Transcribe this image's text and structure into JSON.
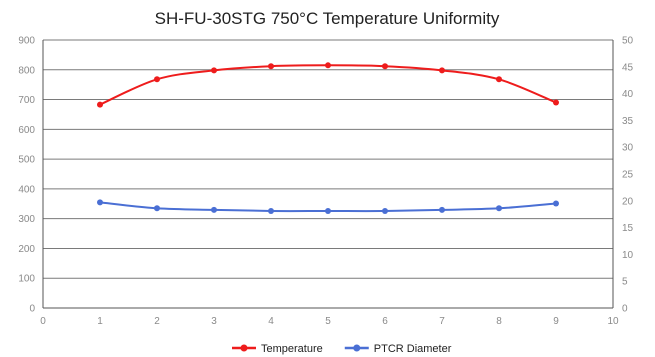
{
  "chart_data": {
    "type": "line",
    "title": "SH-FU-30STG 750°C Temperature Uniformity",
    "xlabel": "",
    "ylabel": "",
    "xlim": [
      0,
      10
    ],
    "ylim": [
      0,
      900
    ],
    "y2lim": [
      0,
      50
    ],
    "x_ticks": [
      "0",
      "1",
      "2",
      "3",
      "4",
      "5",
      "6",
      "7",
      "8",
      "9",
      "10"
    ],
    "y_ticks": [
      "0",
      "100",
      "200",
      "300",
      "400",
      "500",
      "600",
      "700",
      "800",
      "900"
    ],
    "y2_ticks": [
      "0",
      "5",
      "10",
      "15",
      "20",
      "25",
      "30",
      "35",
      "40",
      "45",
      "50"
    ],
    "grid": "horizontal",
    "legend_position": "bottom",
    "series": [
      {
        "name": "Temperature",
        "axis": "left",
        "color": "#ee1c1c",
        "x": [
          1,
          2,
          3,
          4,
          5,
          6,
          7,
          8,
          9
        ],
        "values": [
          683,
          768,
          798,
          812,
          815,
          812,
          798,
          768,
          690
        ]
      },
      {
        "name": "PTCR Diameter",
        "axis": "right",
        "color": "#4a6fd4",
        "x": [
          1,
          2,
          3,
          4,
          5,
          6,
          7,
          8,
          9
        ],
        "values": [
          19.7,
          18.6,
          18.3,
          18.1,
          18.1,
          18.1,
          18.3,
          18.6,
          19.5
        ]
      }
    ]
  }
}
